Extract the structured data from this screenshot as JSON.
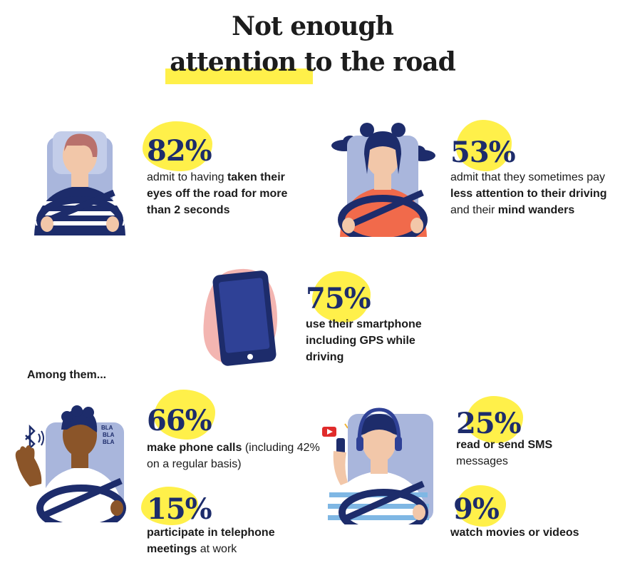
{
  "header": {
    "title_line1": "Not enough",
    "title_line2": "attention to the road"
  },
  "stats": {
    "s82": {
      "value": "82%",
      "text": [
        "admit to having ",
        "taken their eyes off the road for more than 2 seconds"
      ]
    },
    "s53": {
      "value": "53%",
      "text": [
        "admit that they sometimes pay ",
        "less attention to their driving",
        " and their ",
        "mind wanders"
      ]
    },
    "s75": {
      "value": "75%",
      "text": "use their smartphone including GPS while driving"
    },
    "among": "Among them...",
    "s66": {
      "value": "66%",
      "text": [
        "make phone calls",
        " (including 42% on a regular basis)"
      ]
    },
    "s15": {
      "value": "15%",
      "text": [
        "participate in telephone meetings",
        " at work"
      ]
    },
    "s25": {
      "value": "25%",
      "text": [
        "read or send SMS",
        " messages"
      ]
    },
    "s9": {
      "value": "9%",
      "text": "watch movies or videos"
    }
  },
  "illustrations": {
    "bla_text": [
      "BLA",
      "BLA",
      "BLA"
    ],
    "icons": [
      "driver-icon",
      "daydreaming-driver-icon",
      "smartphone-icon",
      "bluetooth-icon",
      "youtube-icon"
    ]
  },
  "colors": {
    "accent_yellow": "#fff04a",
    "navy": "#1d2c6b",
    "seat_blue": "#a9b6dc",
    "pink_blob": "#f3b5b1",
    "orange_shirt": "#f16a4b"
  }
}
